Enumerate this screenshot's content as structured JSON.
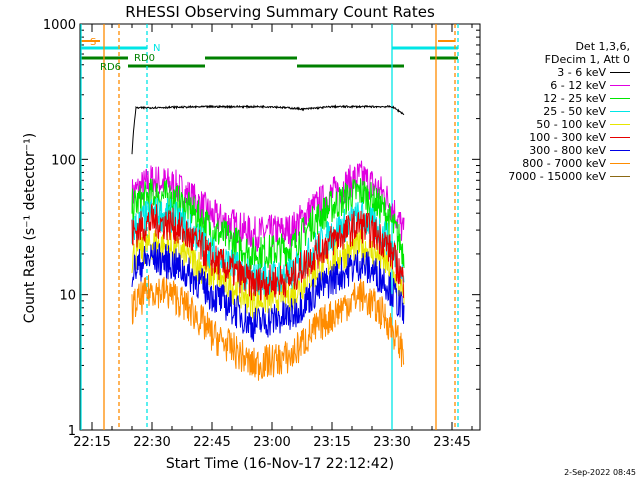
{
  "chart_data": {
    "type": "line",
    "title": "RHESSI Observing Summary Count Rates",
    "xlabel": "Start Time (16-Nov-17 22:12:42)",
    "ylabel": "Count Rate (s⁻¹ detector⁻¹)",
    "yscale": "log",
    "ylim": [
      1,
      1000
    ],
    "yticks": [
      "1",
      "10",
      "100",
      "1000"
    ],
    "xlim": [
      "22:12",
      "23:52"
    ],
    "xticks": [
      "22:15",
      "22:30",
      "22:45",
      "23:00",
      "23:15",
      "23:30",
      "23:45"
    ],
    "legend_header": [
      "Det 1,3,6,",
      "FDecim 1, Att 0"
    ],
    "series": [
      {
        "name": "3 - 6 keV",
        "color": "#000000",
        "x": [
          "22:25",
          "22:26",
          "22:45",
          "23:00",
          "23:08",
          "23:15",
          "23:30",
          "23:33"
        ],
        "values": [
          110,
          240,
          245,
          245,
          235,
          245,
          245,
          215
        ]
      },
      {
        "name": "6 - 12 keV",
        "color": "#e000e0",
        "x": [
          "22:25",
          "22:30",
          "22:35",
          "22:45",
          "22:55",
          "23:05",
          "23:15",
          "23:22",
          "23:28",
          "23:33"
        ],
        "values": [
          55,
          70,
          65,
          38,
          28,
          30,
          55,
          75,
          55,
          28
        ]
      },
      {
        "name": "12 - 25 keV",
        "color": "#00e600",
        "x": [
          "22:25",
          "22:30",
          "22:35",
          "22:45",
          "22:55",
          "23:05",
          "23:15",
          "23:22",
          "23:28",
          "23:33"
        ],
        "values": [
          45,
          55,
          52,
          30,
          20,
          22,
          45,
          58,
          42,
          20
        ]
      },
      {
        "name": "25 - 50 keV",
        "color": "#00e6e6",
        "x": [
          "22:25",
          "22:30",
          "22:35",
          "22:45",
          "22:55",
          "23:05",
          "23:15",
          "23:22",
          "23:28",
          "23:33"
        ],
        "values": [
          30,
          40,
          38,
          20,
          13,
          14,
          28,
          38,
          28,
          13
        ]
      },
      {
        "name": "50 - 100 keV",
        "color": "#e6e600",
        "x": [
          "22:25",
          "22:30",
          "22:35",
          "22:45",
          "22:55",
          "23:05",
          "23:15",
          "23:22",
          "23:28",
          "23:33"
        ],
        "values": [
          19,
          24,
          22,
          14,
          9,
          10,
          18,
          23,
          18,
          9
        ]
      },
      {
        "name": "100 - 300 keV",
        "color": "#e60000",
        "x": [
          "22:25",
          "22:30",
          "22:35",
          "22:45",
          "22:55",
          "23:05",
          "23:15",
          "23:22",
          "23:28",
          "23:33"
        ],
        "values": [
          28,
          35,
          33,
          18,
          12,
          13,
          25,
          33,
          25,
          12
        ]
      },
      {
        "name": "300 - 800 keV",
        "color": "#0000e6",
        "x": [
          "22:25",
          "22:30",
          "22:35",
          "22:45",
          "22:55",
          "23:05",
          "23:15",
          "23:22",
          "23:28",
          "23:33"
        ],
        "values": [
          15,
          19,
          17,
          10,
          6,
          7,
          13,
          17,
          13,
          7
        ]
      },
      {
        "name": "800 - 7000 keV",
        "color": "#ff8c00",
        "x": [
          "22:25",
          "22:30",
          "22:35",
          "22:45",
          "22:55",
          "23:05",
          "23:15",
          "23:22",
          "23:28",
          "23:33"
        ],
        "values": [
          8,
          11,
          10,
          5,
          3,
          3.5,
          7,
          10,
          7,
          3.5
        ]
      },
      {
        "name": "7000 - 15000 keV",
        "color": "#8b6914",
        "x": [],
        "values": []
      }
    ],
    "flags": [
      {
        "label": "S",
        "color": "#ff8c00"
      },
      {
        "label": "N",
        "color": "#00e6e6"
      },
      {
        "label": "RD0",
        "color": "#008000"
      },
      {
        "label": "RD6",
        "color": "#008000"
      }
    ]
  },
  "footer_date": "2-Sep-2022 08:45"
}
